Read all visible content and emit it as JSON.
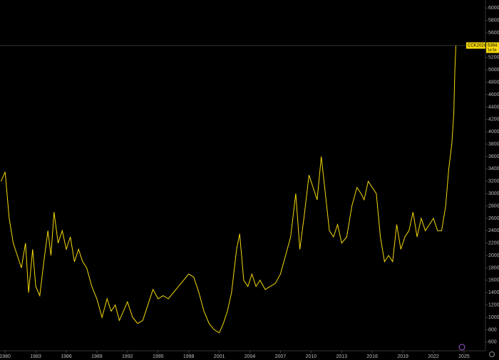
{
  "chart_data": {
    "type": "line",
    "x": [
      1979.6,
      1980.0,
      1980.4,
      1980.8,
      1981.2,
      1981.6,
      1982.0,
      1982.3,
      1982.7,
      1983.0,
      1983.4,
      1983.8,
      1984.2,
      1984.5,
      1984.8,
      1985.2,
      1985.6,
      1986.0,
      1986.4,
      1986.8,
      1987.2,
      1987.6,
      1988.0,
      1988.5,
      1989.0,
      1989.5,
      1990.0,
      1990.4,
      1990.8,
      1991.2,
      1991.6,
      1992.0,
      1992.5,
      1993.0,
      1993.5,
      1994.0,
      1994.5,
      1995.0,
      1995.5,
      1996.0,
      1996.5,
      1997.0,
      1997.5,
      1998.0,
      1998.5,
      1999.0,
      1999.5,
      2000.0,
      2000.5,
      2001.0,
      2001.4,
      2001.8,
      2002.2,
      2002.7,
      2003.0,
      2003.4,
      2003.8,
      2004.2,
      2004.6,
      2005.0,
      2005.5,
      2006.0,
      2006.5,
      2007.0,
      2007.5,
      2008.0,
      2008.5,
      2008.9,
      2009.3,
      2009.8,
      2010.2,
      2010.6,
      2011.0,
      2011.4,
      2011.8,
      2012.2,
      2012.6,
      2013.0,
      2013.5,
      2014.0,
      2014.5,
      2014.9,
      2015.2,
      2015.6,
      2016.0,
      2016.4,
      2016.8,
      2017.2,
      2017.6,
      2018.0,
      2018.4,
      2018.8,
      2019.2,
      2019.6,
      2020.0,
      2020.4,
      2020.8,
      2021.2,
      2021.6,
      2022.0,
      2022.4,
      2022.8,
      2023.2,
      2023.5,
      2023.8,
      2024.0,
      2024.1,
      2024.2
    ],
    "series": [
      {
        "color": "#f5d90a",
        "values": [
          3200,
          3350,
          2600,
          2200,
          2000,
          1800,
          2200,
          1400,
          2100,
          1500,
          1350,
          1900,
          2400,
          2000,
          2700,
          2200,
          2400,
          2100,
          2300,
          1900,
          2100,
          1900,
          1800,
          1500,
          1300,
          1000,
          1300,
          1100,
          1200,
          950,
          1100,
          1250,
          1000,
          900,
          950,
          1200,
          1450,
          1300,
          1350,
          1300,
          1400,
          1500,
          1600,
          1700,
          1650,
          1400,
          1100,
          900,
          800,
          750,
          900,
          1100,
          1400,
          2100,
          2350,
          1600,
          1500,
          1700,
          1500,
          1600,
          1450,
          1500,
          1550,
          1700,
          2000,
          2300,
          3000,
          2100,
          2600,
          3300,
          3100,
          2900,
          3600,
          3000,
          2400,
          2300,
          2500,
          2200,
          2300,
          2800,
          3100,
          3000,
          2900,
          3200,
          3100,
          3000,
          2300,
          1900,
          2000,
          1900,
          2500,
          2100,
          2300,
          2400,
          2700,
          2300,
          2600,
          2400,
          2500,
          2600,
          2400,
          2400,
          2800,
          3400,
          3800,
          4300,
          5000,
          5394
        ]
      }
    ],
    "xlim": [
      1979.5,
      2027.1
    ],
    "ylim": [
      460,
      6130
    ],
    "xticks": [
      1980,
      1983,
      1986,
      1989,
      1992,
      1995,
      1998,
      2001,
      2004,
      2007,
      2010,
      2013,
      2016,
      2019,
      2022,
      2025
    ],
    "yticks": [
      600,
      800,
      1000,
      1200,
      1400,
      1600,
      1800,
      2000,
      2200,
      2400,
      2600,
      2800,
      3000,
      3200,
      3400,
      3600,
      3800,
      4000,
      4200,
      4400,
      4600,
      4800,
      5000,
      5200,
      5400,
      5600,
      5800,
      6000
    ],
    "last_label": "CCK2024",
    "last_value": 5394,
    "countdown": "1d 5h"
  }
}
